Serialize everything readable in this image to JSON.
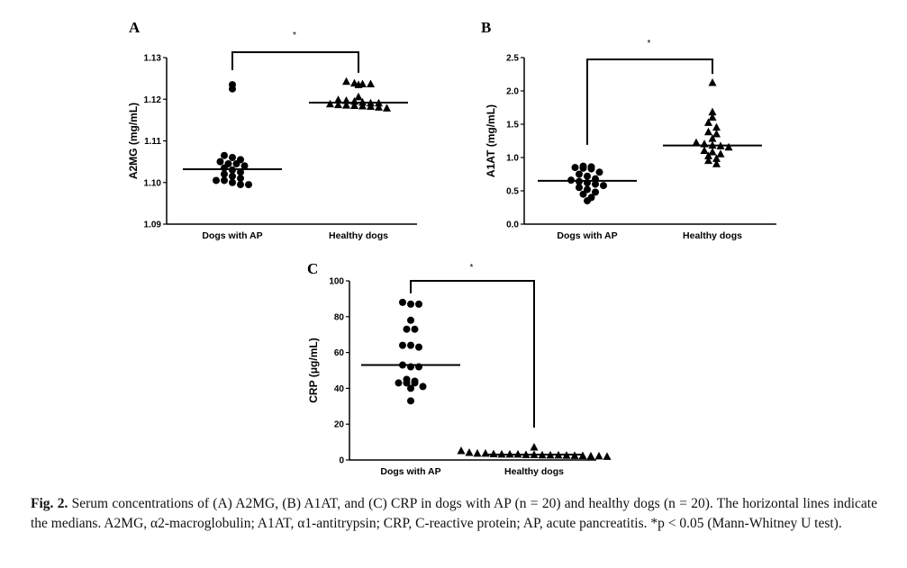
{
  "chart_data": [
    {
      "type": "scatter",
      "panel": "A",
      "ylabel": "A2MG (mg/mL)",
      "xlabel": "",
      "categories": [
        "Dogs with AP",
        "Healthy dogs"
      ],
      "ylim": [
        1.09,
        1.13
      ],
      "yticks": [
        1.09,
        1.1,
        1.11,
        1.12,
        1.13
      ],
      "ytick_labels": [
        "1.09",
        "1.10",
        "1.11",
        "1.12",
        "1.13"
      ],
      "significance": "*",
      "series": [
        {
          "category": "Dogs with AP",
          "marker": "circle",
          "median": 1.1032,
          "values": [
            1.1235,
            1.1225,
            1.1065,
            1.106,
            1.1055,
            1.105,
            1.1045,
            1.1045,
            1.104,
            1.1035,
            1.103,
            1.1025,
            1.102,
            1.1015,
            1.101,
            1.1005,
            1.1005,
            1.1,
            1.0995,
            1.0995
          ]
        },
        {
          "category": "Healthy dogs",
          "marker": "triangle",
          "median": 1.1192,
          "values": [
            1.1242,
            1.1238,
            1.1236,
            1.1236,
            1.1234,
            1.1205,
            1.1198,
            1.1196,
            1.1194,
            1.1192,
            1.119,
            1.119,
            1.1188,
            1.1186,
            1.1185,
            1.1184,
            1.1183,
            1.1182,
            1.118,
            1.1178
          ]
        }
      ]
    },
    {
      "type": "scatter",
      "panel": "B",
      "ylabel": "A1AT (mg/mL)",
      "xlabel": "",
      "categories": [
        "Dogs with AP",
        "Healthy dogs"
      ],
      "ylim": [
        0.0,
        2.5
      ],
      "yticks": [
        0.0,
        0.5,
        1.0,
        1.5,
        2.0,
        2.5
      ],
      "ytick_labels": [
        "0.0",
        "0.5",
        "1.0",
        "1.5",
        "2.0",
        "2.5"
      ],
      "significance": "*",
      "series": [
        {
          "category": "Dogs with AP",
          "marker": "circle",
          "median": 0.65,
          "values": [
            0.87,
            0.86,
            0.85,
            0.84,
            0.83,
            0.78,
            0.75,
            0.72,
            0.68,
            0.66,
            0.64,
            0.62,
            0.6,
            0.58,
            0.55,
            0.52,
            0.48,
            0.45,
            0.4,
            0.35
          ]
        },
        {
          "category": "Healthy dogs",
          "marker": "triangle",
          "median": 1.18,
          "values": [
            2.12,
            1.68,
            1.6,
            1.52,
            1.45,
            1.38,
            1.35,
            1.28,
            1.22,
            1.2,
            1.18,
            1.17,
            1.15,
            1.1,
            1.08,
            1.05,
            1.02,
            0.98,
            0.95,
            0.9
          ]
        }
      ]
    },
    {
      "type": "scatter",
      "panel": "C",
      "ylabel": "CRP (μg/mL)",
      "xlabel": "",
      "categories": [
        "Dogs with AP",
        "Healthy dogs"
      ],
      "ylim": [
        0,
        100
      ],
      "yticks": [
        0,
        20,
        40,
        60,
        80,
        100
      ],
      "ytick_labels": [
        "0",
        "20",
        "40",
        "60",
        "80",
        "100"
      ],
      "significance": "*",
      "series": [
        {
          "category": "Dogs with AP",
          "marker": "circle",
          "median": 53,
          "values": [
            88,
            87,
            87,
            78,
            73,
            73,
            64,
            64,
            63,
            53,
            52,
            52,
            45,
            44,
            43,
            43,
            43,
            41,
            40,
            33
          ]
        },
        {
          "category": "Healthy dogs",
          "marker": "triangle",
          "median": 3,
          "values": [
            7,
            5,
            4,
            3.5,
            3.5,
            3.2,
            3,
            3,
            3,
            2.8,
            2.8,
            2.6,
            2.5,
            2.5,
            2.4,
            2.3,
            2.2,
            2,
            2,
            1.8
          ]
        }
      ]
    }
  ],
  "caption": {
    "fig_label": "Fig. 2.",
    "text": "Serum concentrations of (A) A2MG, (B) A1AT, and (C) CRP in dogs with AP (n = 20) and healthy dogs (n = 20). The horizontal lines indicate the medians. A2MG, α2-macroglobulin; A1AT, α1-antitrypsin; CRP, C-reactive protein; AP, acute pancreatitis. *p < 0.05 (Mann-Whitney U test)."
  }
}
